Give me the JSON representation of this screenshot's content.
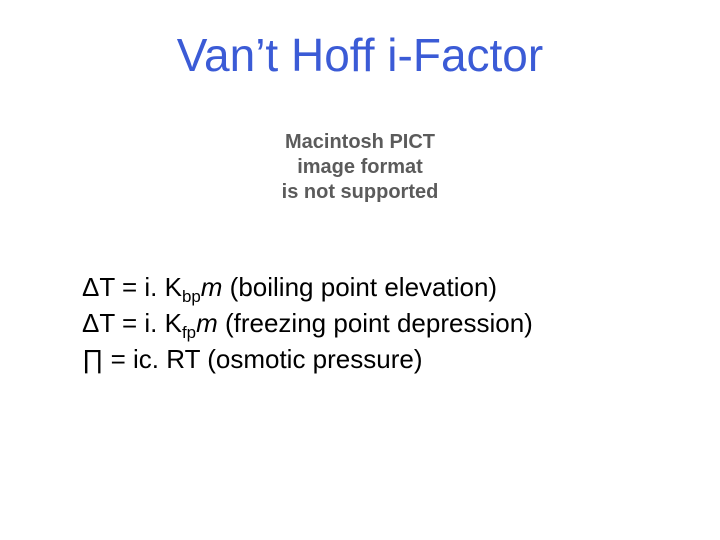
{
  "colors": {
    "background": "#ffffff",
    "title": "#3b5bd6",
    "body_text": "#000000",
    "pict_text": "#5b5b5b"
  },
  "typography": {
    "title_font": "Comic Sans MS",
    "title_size_pt": 46,
    "body_font": "Comic Sans MS",
    "body_size_pt": 26,
    "pict_font": "Arial",
    "pict_size_pt": 20,
    "pict_weight": "bold"
  },
  "title": "Van’t Hoff i-Factor",
  "pict_message": {
    "line1": "Macintosh PICT",
    "line2": "image format",
    "line3": "is not supported"
  },
  "formulas": {
    "line1": {
      "delta": "ΔT = i. K",
      "sub": "bp",
      "m": "m",
      "desc": " (boiling point elevation)"
    },
    "line2": {
      "delta": "ΔT = i. K",
      "sub": "fp",
      "m": "m",
      "desc": " (freezing point depression)"
    },
    "line3": {
      "text": "∏ = ic. RT (osmotic pressure)"
    }
  }
}
